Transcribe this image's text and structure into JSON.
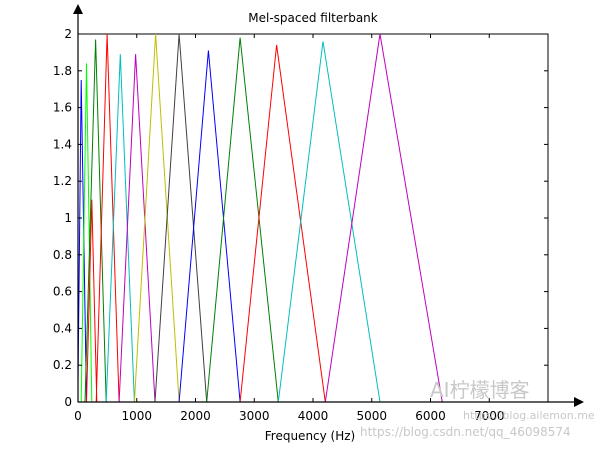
{
  "chart_data": {
    "type": "line",
    "title": "Mel-spaced filterbank",
    "xlabel": "Frequency (Hz)",
    "ylabel": "",
    "xlim": [
      0,
      8000
    ],
    "ylim": [
      0,
      2
    ],
    "x_ticks": [
      0,
      1000,
      2000,
      3000,
      4000,
      5000,
      6000,
      7000
    ],
    "y_ticks": [
      0,
      0.2,
      0.4,
      0.6,
      0.8,
      1,
      1.2,
      1.4,
      1.6,
      1.8,
      2
    ],
    "x_tick_labels": [
      "0",
      "1000",
      "2000",
      "3000",
      "4000",
      "5000",
      "6000",
      "7000"
    ],
    "y_tick_labels": [
      "0",
      "0.2",
      "0.4",
      "0.6",
      "0.8",
      "1",
      "1.2",
      "1.4",
      "1.6",
      "1.8",
      "2"
    ],
    "grid": false,
    "legend": "none",
    "series": [
      {
        "color": "#0000ff",
        "x": [
          0,
          55,
          145
        ],
        "y": [
          0.1,
          1.75,
          0
        ]
      },
      {
        "color": "#00ff00",
        "x": [
          55,
          145,
          235
        ],
        "y": [
          0,
          1.84,
          0
        ]
      },
      {
        "color": "#ff0000",
        "x": [
          145,
          235,
          320
        ],
        "y": [
          0,
          1.1,
          0
        ]
      },
      {
        "color": "#008000",
        "x": [
          120,
          300,
          480
        ],
        "y": [
          0,
          1.97,
          0
        ]
      },
      {
        "color": "#ff0000",
        "x": [
          310,
          495,
          700
        ],
        "y": [
          0,
          2.0,
          0
        ]
      },
      {
        "color": "#00bfbf",
        "x": [
          480,
          720,
          960
        ],
        "y": [
          0,
          1.89,
          0
        ]
      },
      {
        "color": "#bf00bf",
        "x": [
          700,
          980,
          1310
        ],
        "y": [
          0,
          1.89,
          0
        ]
      },
      {
        "color": "#bfbf00",
        "x": [
          960,
          1320,
          1720
        ],
        "y": [
          0,
          2.0,
          0
        ]
      },
      {
        "color": "#404040",
        "x": [
          1310,
          1720,
          2190
        ],
        "y": [
          0,
          2.0,
          0
        ]
      },
      {
        "color": "#0000ff",
        "x": [
          1720,
          2220,
          2760
        ],
        "y": [
          0,
          1.91,
          0
        ]
      },
      {
        "color": "#008000",
        "x": [
          2190,
          2760,
          3410
        ],
        "y": [
          0,
          1.98,
          0
        ]
      },
      {
        "color": "#ff0000",
        "x": [
          2760,
          3380,
          4210
        ],
        "y": [
          0,
          1.94,
          0
        ]
      },
      {
        "color": "#00bfbf",
        "x": [
          3410,
          4170,
          5140
        ],
        "y": [
          0,
          1.96,
          0
        ]
      },
      {
        "color": "#bf00bf",
        "x": [
          4210,
          5140,
          6200
        ],
        "y": [
          0,
          2.0,
          0
        ]
      }
    ]
  },
  "watermark": {
    "logo_text": "AI柠檬博客",
    "url_text": "https://blog.ailemon.me",
    "csdn_text": "https://blog.csdn.net/qq_46098574"
  }
}
